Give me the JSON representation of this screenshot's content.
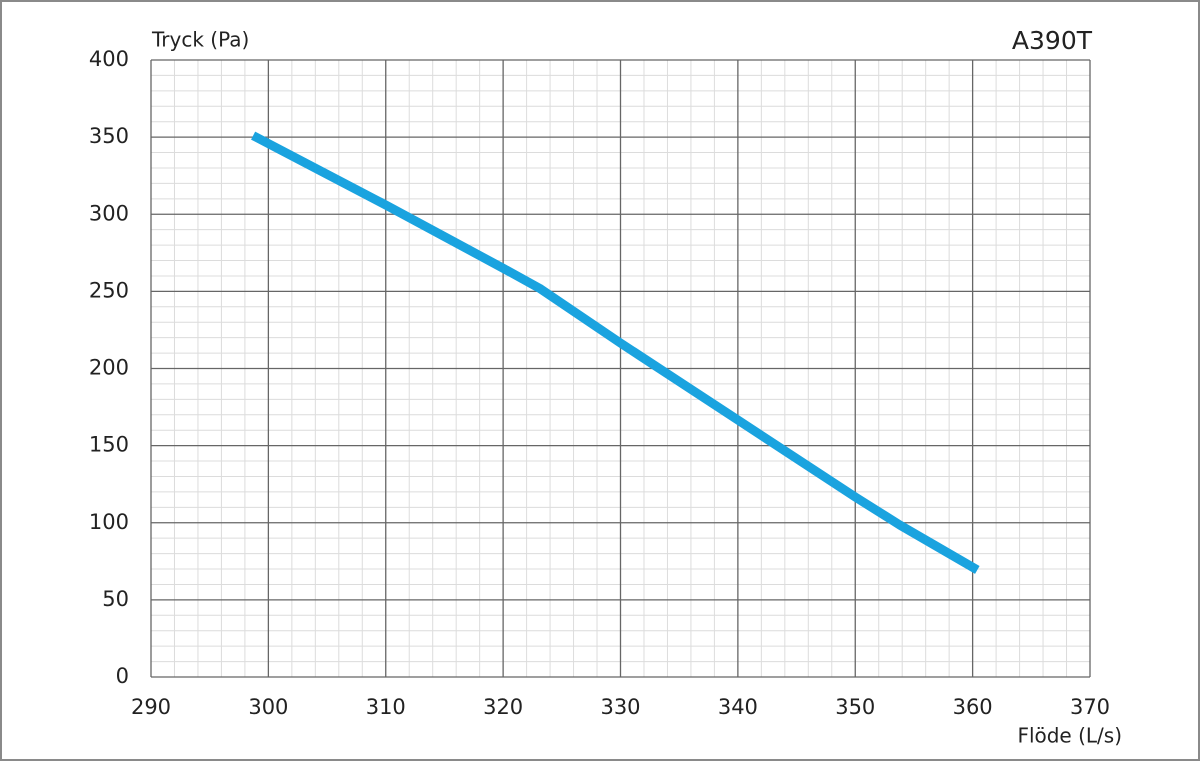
{
  "chart_data": {
    "type": "line",
    "title": "A390T",
    "y_label": "Tryck (Pa)",
    "x_label": "Flöde (L/s)",
    "series": [
      {
        "color": "#1aa3df",
        "x": [
          298.7,
          310,
          320,
          323.1,
          330,
          340,
          350,
          353.8,
          360.4
        ],
        "values": [
          351,
          306,
          265,
          252,
          216.5,
          166.6,
          116.7,
          98.5,
          69.4
        ]
      }
    ],
    "xlim": [
      290,
      370
    ],
    "xticks": [
      290,
      300,
      310,
      320,
      330,
      340,
      350,
      360,
      370
    ],
    "ylim": [
      0,
      400
    ],
    "yticks": [
      0,
      50,
      100,
      150,
      200,
      250,
      300,
      350,
      400
    ],
    "grid": true,
    "minor_grid": {
      "x": 5,
      "y": 5
    }
  }
}
